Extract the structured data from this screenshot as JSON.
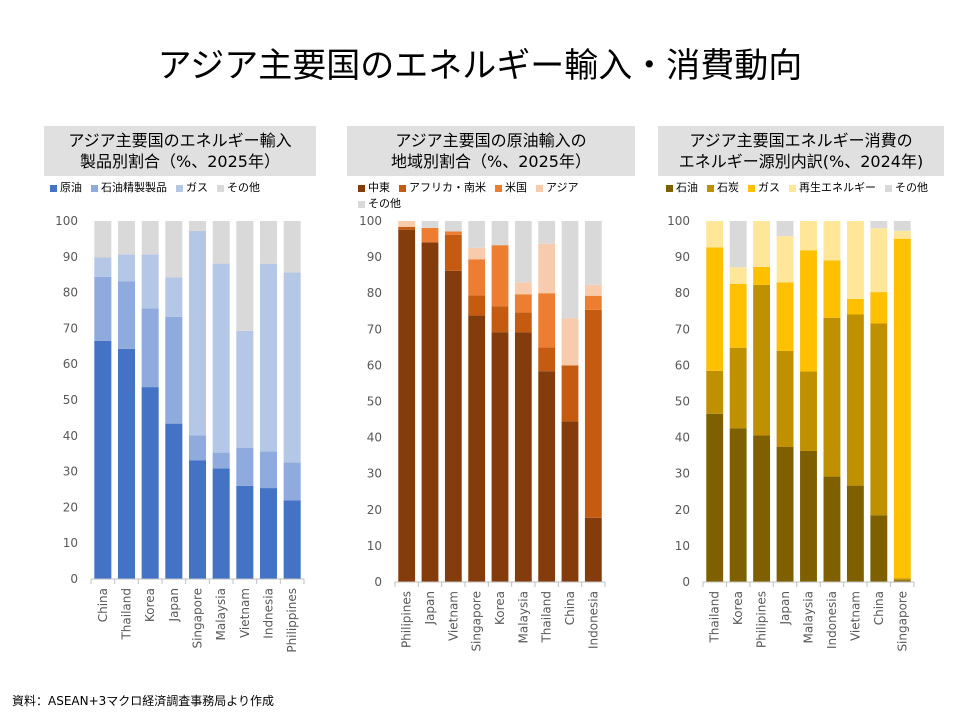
{
  "title": "アジア主要国のエネルギー輸入・消費動向",
  "source": "資料：ASEAN+3マクロ経済調査事務局より作成",
  "chart_data": [
    {
      "type": "bar",
      "stacked": true,
      "title_lines": [
        "アジア主要国のエネルギー輸入",
        "製品別割合（%、2025年）"
      ],
      "categories": [
        "China",
        "Thailand",
        "Korea",
        "Japan",
        "Singapore",
        "Malaysia",
        "Vietnam",
        "Indnesia",
        "Philippines"
      ],
      "ylim": [
        0,
        100
      ],
      "yticks": [
        0,
        10,
        20,
        30,
        40,
        50,
        60,
        70,
        80,
        90,
        100
      ],
      "grid": false,
      "legend": "top",
      "series": [
        {
          "name": "原油",
          "color": "#4472c4",
          "values": [
            66.5,
            64.3,
            53.6,
            43.4,
            33.1,
            30.9,
            26.0,
            25.4,
            22.0
          ]
        },
        {
          "name": "石油精製製品",
          "color": "#8faadc",
          "values": [
            17.9,
            18.8,
            22.0,
            29.8,
            7.0,
            4.4,
            10.6,
            10.2,
            10.6
          ]
        },
        {
          "name": "ガス",
          "color": "#b4c7e7",
          "values": [
            5.4,
            7.6,
            15.1,
            11.1,
            57.1,
            52.8,
            32.7,
            52.4,
            53.0
          ]
        },
        {
          "name": "その他",
          "color": "#d9d9d9",
          "values": [
            10.2,
            9.3,
            9.3,
            15.7,
            2.8,
            11.9,
            30.7,
            12.0,
            14.4
          ]
        }
      ]
    },
    {
      "type": "bar",
      "stacked": true,
      "title_lines": [
        "アジア主要国の原油輸入の",
        "地域別割合（%、2025年）"
      ],
      "categories": [
        "Philipines",
        "Japan",
        "Vietnam",
        "Singapore",
        "Korea",
        "Malaysia",
        "Thailand",
        "China",
        "Indonesia"
      ],
      "ylim": [
        0,
        100
      ],
      "yticks": [
        0,
        10,
        20,
        30,
        40,
        50,
        60,
        70,
        80,
        90,
        100
      ],
      "grid": false,
      "legend": "top",
      "series": [
        {
          "name": "中東",
          "color": "#843c0c",
          "values": [
            97.6,
            94.1,
            86.2,
            73.8,
            69.2,
            69.2,
            58.4,
            44.5,
            17.8
          ]
        },
        {
          "name": "アフリカ・南米",
          "color": "#c55a11",
          "values": [
            0.8,
            0.0,
            10.0,
            5.6,
            7.2,
            5.5,
            6.6,
            15.5,
            57.6
          ]
        },
        {
          "name": "米国",
          "color": "#ed7d31",
          "values": [
            0.0,
            4.0,
            0.9,
            10.0,
            16.9,
            5.0,
            15.0,
            0.0,
            3.9
          ]
        },
        {
          "name": "アジア",
          "color": "#f8cbad",
          "values": [
            1.6,
            0.0,
            0.0,
            3.2,
            0.0,
            3.3,
            13.7,
            13.0,
            3.0
          ]
        },
        {
          "name": "その他",
          "color": "#d9d9d9",
          "values": [
            0.0,
            1.9,
            2.9,
            7.4,
            6.7,
            17.0,
            6.3,
            27.0,
            17.7
          ]
        }
      ]
    },
    {
      "type": "bar",
      "stacked": true,
      "title_lines": [
        "アジア主要国エネルギー消費の",
        "エネルギー源別内訳(%、2024年)"
      ],
      "categories": [
        "Thailand",
        "Korea",
        "Philipines",
        "Japan",
        "Malaysia",
        "Indonesia",
        "Vietnam",
        "China",
        "Singapore"
      ],
      "ylim": [
        0,
        100
      ],
      "yticks": [
        0,
        10,
        20,
        30,
        40,
        50,
        60,
        70,
        80,
        90,
        100
      ],
      "grid": false,
      "legend": "top",
      "series": [
        {
          "name": "石油",
          "color": "#7f6000",
          "values": [
            46.6,
            42.6,
            40.6,
            37.4,
            36.3,
            29.2,
            26.7,
            18.5,
            0.5
          ]
        },
        {
          "name": "石炭",
          "color": "#bf9000",
          "values": [
            11.9,
            22.3,
            41.7,
            26.6,
            22.0,
            44.0,
            47.4,
            53.1,
            0.5
          ]
        },
        {
          "name": "ガス",
          "color": "#ffc000",
          "values": [
            34.2,
            17.7,
            5.0,
            19.0,
            33.6,
            15.9,
            4.3,
            8.7,
            94.1
          ]
        },
        {
          "name": "再生エネルギー",
          "color": "#ffe699",
          "values": [
            7.3,
            4.6,
            12.7,
            12.8,
            8.1,
            10.9,
            21.6,
            17.7,
            2.2
          ]
        },
        {
          "name": "その他",
          "color": "#d9d9d9",
          "values": [
            0.0,
            12.8,
            0.0,
            4.2,
            0.0,
            0.0,
            0.0,
            2.0,
            2.7
          ]
        }
      ]
    }
  ]
}
